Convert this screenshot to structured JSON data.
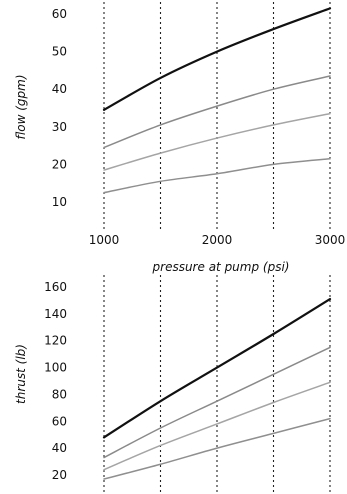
{
  "chart_data": [
    {
      "type": "line",
      "xlabel": "pressure at pump (psi)",
      "ylabel": "flow (gpm)",
      "xlim": [
        1000,
        3000
      ],
      "ylim": [
        10,
        60
      ],
      "x": [
        1000,
        1500,
        2000,
        2500,
        3000
      ],
      "xticks": [
        "1000",
        "2000",
        "3000"
      ],
      "yticks": [
        "10",
        "20",
        "30",
        "40",
        "50",
        "60"
      ],
      "grid": "vertical dotted lines at 1000, 1500, 2000, 2500, 3000",
      "series": [
        {
          "values": [
            34.5,
            43,
            50,
            56,
            61.5
          ],
          "color": "#111111"
        },
        {
          "values": [
            24.5,
            30.5,
            35.5,
            40,
            43.5
          ],
          "color": "#8a8a8a"
        },
        {
          "values": [
            18.5,
            23,
            27,
            30.5,
            33.5
          ],
          "color": "#a5a5a5"
        },
        {
          "values": [
            12.5,
            15.5,
            17.5,
            20,
            21.5
          ],
          "color": "#8f8f8f"
        }
      ]
    },
    {
      "type": "line",
      "xlabel": "",
      "ylabel": "thrust (lb)",
      "xlim": [
        1000,
        3000
      ],
      "ylim": [
        20,
        160
      ],
      "x": [
        1000,
        1500,
        2000,
        2500,
        3000
      ],
      "xticks": [],
      "yticks": [
        "20",
        "40",
        "60",
        "80",
        "100",
        "120",
        "140",
        "160"
      ],
      "grid": "vertical dotted lines at 1000, 1500, 2000, 2500, 3000",
      "series": [
        {
          "values": [
            48,
            75,
            100,
            125,
            151
          ],
          "color": "#111111"
        },
        {
          "values": [
            33,
            55,
            75,
            95,
            115
          ],
          "color": "#8a8a8a"
        },
        {
          "values": [
            24,
            42,
            58,
            74,
            89
          ],
          "color": "#a5a5a5"
        },
        {
          "values": [
            17,
            28,
            40,
            51,
            62
          ],
          "color": "#8f8f8f"
        }
      ]
    }
  ]
}
